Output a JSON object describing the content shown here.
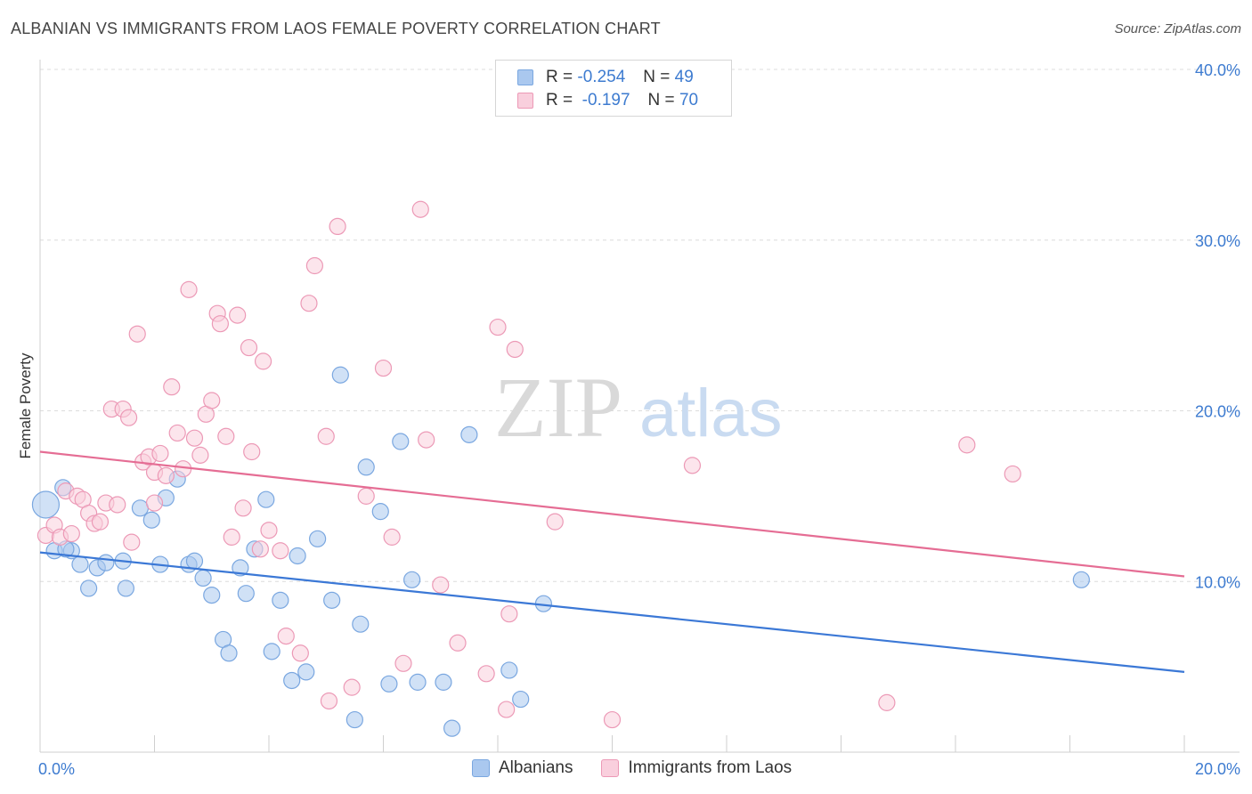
{
  "header": {
    "title": "ALBANIAN VS IMMIGRANTS FROM LAOS FEMALE POVERTY CORRELATION CHART",
    "source": "Source: ZipAtlas.com"
  },
  "watermark": {
    "zip": "ZIP",
    "atlas": "atlas"
  },
  "stats_legend": {
    "rows": [
      {
        "r_label": "R =",
        "r_value": "-0.254",
        "n_label": "N =",
        "n_value": "49",
        "color": "#aac8ef"
      },
      {
        "r_label": "R =",
        "r_value": "-0.197",
        "n_label": "N =",
        "n_value": "70",
        "color": "#f6bcd0"
      }
    ]
  },
  "bottom_legend": {
    "items": [
      {
        "label": "Albanians",
        "color": "#aac8ef",
        "border": "#7aa7e0"
      },
      {
        "label": "Immigrants from Laos",
        "color": "#f9cfdd",
        "border": "#ec99b6"
      }
    ]
  },
  "chart_data": {
    "type": "scatter",
    "title": "ALBANIAN VS IMMIGRANTS FROM LAOS FEMALE POVERTY CORRELATION CHART",
    "xlabel": "",
    "ylabel": "Female Poverty",
    "xlim": [
      0,
      20
    ],
    "ylim": [
      0,
      40
    ],
    "x_tick_labels": [
      "0.0%",
      "20.0%"
    ],
    "y_tick_labels": [
      "10.0%",
      "20.0%",
      "30.0%",
      "40.0%"
    ],
    "y_ticks": [
      10,
      20,
      30,
      40
    ],
    "grid": true,
    "legend_position": "top-center",
    "series": [
      {
        "name": "Albanians",
        "color": "#3b78d6",
        "fill": "#aac8ef",
        "stroke": "#7aa7e0",
        "trend": {
          "x": [
            0,
            20
          ],
          "y": [
            11.7,
            4.7
          ]
        },
        "points": [
          [
            0.1,
            14.5
          ],
          [
            0.4,
            15.5
          ],
          [
            0.25,
            11.8
          ],
          [
            0.55,
            11.8
          ],
          [
            0.7,
            11.0
          ],
          [
            1.0,
            10.8
          ],
          [
            0.85,
            9.6
          ],
          [
            1.15,
            11.1
          ],
          [
            1.45,
            11.2
          ],
          [
            1.5,
            9.6
          ],
          [
            1.75,
            14.3
          ],
          [
            1.95,
            13.6
          ],
          [
            2.1,
            11.0
          ],
          [
            2.2,
            14.9
          ],
          [
            2.4,
            16.0
          ],
          [
            2.6,
            11.0
          ],
          [
            2.7,
            11.2
          ],
          [
            2.85,
            10.2
          ],
          [
            3.0,
            9.2
          ],
          [
            3.2,
            6.6
          ],
          [
            3.3,
            5.8
          ],
          [
            3.5,
            10.8
          ],
          [
            3.6,
            9.3
          ],
          [
            3.75,
            11.9
          ],
          [
            3.95,
            14.8
          ],
          [
            4.05,
            5.9
          ],
          [
            4.2,
            8.9
          ],
          [
            4.4,
            4.2
          ],
          [
            4.5,
            11.5
          ],
          [
            4.65,
            4.7
          ],
          [
            4.85,
            12.5
          ],
          [
            5.1,
            8.9
          ],
          [
            5.25,
            22.1
          ],
          [
            5.5,
            1.9
          ],
          [
            5.6,
            7.5
          ],
          [
            5.7,
            16.7
          ],
          [
            5.95,
            14.1
          ],
          [
            6.1,
            4.0
          ],
          [
            6.3,
            18.2
          ],
          [
            6.5,
            10.1
          ],
          [
            6.6,
            4.1
          ],
          [
            7.05,
            4.1
          ],
          [
            7.2,
            1.4
          ],
          [
            7.5,
            18.6
          ],
          [
            8.2,
            4.8
          ],
          [
            8.4,
            3.1
          ],
          [
            8.8,
            8.7
          ],
          [
            18.2,
            10.1
          ],
          [
            0.45,
            11.9
          ]
        ]
      },
      {
        "name": "Immigrants from Laos",
        "color": "#e56d94",
        "fill": "#f9cfdd",
        "stroke": "#ec99b6",
        "trend": {
          "x": [
            0,
            20
          ],
          "y": [
            17.6,
            10.3
          ]
        },
        "points": [
          [
            0.1,
            12.7
          ],
          [
            0.25,
            13.3
          ],
          [
            0.35,
            12.6
          ],
          [
            0.45,
            15.3
          ],
          [
            0.55,
            12.8
          ],
          [
            0.65,
            15.0
          ],
          [
            0.75,
            14.8
          ],
          [
            0.85,
            14.0
          ],
          [
            0.95,
            13.4
          ],
          [
            1.05,
            13.5
          ],
          [
            1.15,
            14.6
          ],
          [
            1.25,
            20.1
          ],
          [
            1.35,
            14.5
          ],
          [
            1.45,
            20.1
          ],
          [
            1.55,
            19.6
          ],
          [
            1.6,
            12.3
          ],
          [
            1.7,
            24.5
          ],
          [
            1.8,
            17.0
          ],
          [
            1.9,
            17.3
          ],
          [
            2.0,
            16.4
          ],
          [
            2.1,
            17.5
          ],
          [
            2.2,
            16.2
          ],
          [
            2.3,
            21.4
          ],
          [
            2.4,
            18.7
          ],
          [
            2.5,
            16.6
          ],
          [
            2.6,
            27.1
          ],
          [
            2.7,
            18.4
          ],
          [
            2.8,
            17.4
          ],
          [
            2.9,
            19.8
          ],
          [
            3.0,
            20.6
          ],
          [
            3.1,
            25.7
          ],
          [
            3.15,
            25.1
          ],
          [
            3.25,
            18.5
          ],
          [
            3.35,
            12.6
          ],
          [
            3.45,
            25.6
          ],
          [
            3.55,
            14.3
          ],
          [
            3.65,
            23.7
          ],
          [
            3.7,
            17.6
          ],
          [
            3.85,
            11.9
          ],
          [
            3.9,
            22.9
          ],
          [
            4.0,
            13.0
          ],
          [
            4.2,
            11.8
          ],
          [
            4.3,
            6.8
          ],
          [
            4.55,
            5.8
          ],
          [
            4.7,
            26.3
          ],
          [
            4.8,
            28.5
          ],
          [
            5.0,
            18.5
          ],
          [
            5.05,
            3.0
          ],
          [
            5.2,
            30.8
          ],
          [
            5.45,
            3.8
          ],
          [
            5.7,
            15.0
          ],
          [
            6.0,
            22.5
          ],
          [
            6.15,
            12.6
          ],
          [
            6.35,
            5.2
          ],
          [
            6.65,
            31.8
          ],
          [
            6.75,
            18.3
          ],
          [
            7.0,
            9.8
          ],
          [
            7.3,
            6.4
          ],
          [
            7.8,
            4.6
          ],
          [
            8.0,
            24.9
          ],
          [
            8.2,
            8.1
          ],
          [
            8.3,
            23.6
          ],
          [
            9.0,
            13.5
          ],
          [
            10.0,
            1.9
          ],
          [
            11.4,
            16.8
          ],
          [
            14.8,
            2.9
          ],
          [
            16.2,
            18.0
          ],
          [
            17.0,
            16.3
          ],
          [
            8.15,
            2.5
          ],
          [
            2.0,
            14.6
          ]
        ]
      }
    ]
  }
}
